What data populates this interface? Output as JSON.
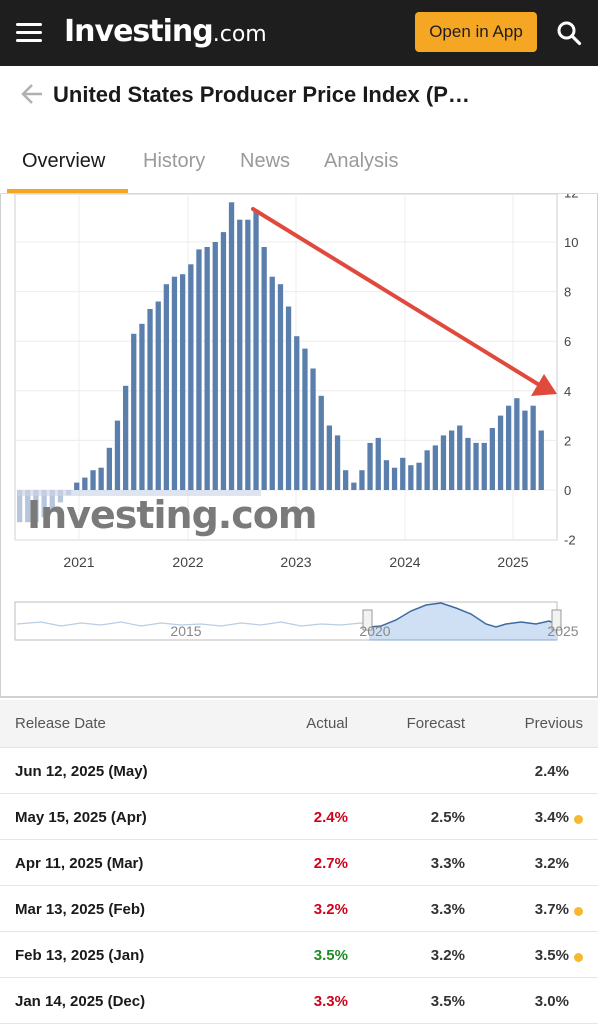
{
  "header": {
    "brand": "Investing",
    "brand_tld": ".com",
    "open_app_label": "Open in App",
    "menu_icon": "hamburger-icon",
    "search_icon": "search-icon"
  },
  "title_bar": {
    "title": "United States Producer Price Index (P…",
    "back_icon": "back-arrow-icon"
  },
  "tabs": [
    {
      "label": "Overview",
      "active": true
    },
    {
      "label": "History",
      "active": false
    },
    {
      "label": "News",
      "active": false
    },
    {
      "label": "Analysis",
      "active": false
    }
  ],
  "colors": {
    "accent": "#f5a623",
    "bar": "#5b7fad",
    "negative_bar": "#b8c6dc",
    "arrow": "#e04a3c",
    "red": "#d0021b",
    "green": "#1f8b24"
  },
  "chart_data": {
    "type": "bar",
    "title": "",
    "xlabel": "",
    "ylabel": "",
    "ylim": [
      -2,
      12
    ],
    "y_ticks": [
      "12",
      "10",
      "8",
      "6",
      "4",
      "2",
      "0",
      "-2"
    ],
    "x_ticks": [
      "2021",
      "2022",
      "2023",
      "2024",
      "2025"
    ],
    "watermark": "Investing.com",
    "annotation": "downward trend arrow from mid-2022 peak toward 2025",
    "series": [
      {
        "values": [
          -1.3,
          -1.3,
          -1.3,
          -1.1,
          -0.8,
          -0.5,
          -0.2,
          0.3,
          0.5,
          0.8,
          0.9,
          1.7,
          2.8,
          4.2,
          6.3,
          6.7,
          7.3,
          7.6,
          8.3,
          8.6,
          8.7,
          9.1,
          9.7,
          9.8,
          10.0,
          10.4,
          11.6,
          10.9,
          10.9,
          11.3,
          9.8,
          8.6,
          8.3,
          7.4,
          6.2,
          5.7,
          4.9,
          3.8,
          2.6,
          2.2,
          0.8,
          0.3,
          0.8,
          1.9,
          2.1,
          1.2,
          0.9,
          1.3,
          1.0,
          1.1,
          1.6,
          1.8,
          2.2,
          2.4,
          2.6,
          2.1,
          1.9,
          1.9,
          2.5,
          3.0,
          3.4,
          3.7,
          3.2,
          3.4,
          2.4
        ],
        "negative_values_note": "earliest bars shown below zero in light shade"
      }
    ],
    "navigator": {
      "labels": [
        "2015",
        "2020",
        "2025"
      ],
      "selected_range": "2020–2025"
    }
  },
  "table": {
    "headers": {
      "release_date": "Release Date",
      "actual": "Actual",
      "forecast": "Forecast",
      "previous": "Previous"
    },
    "rows": [
      {
        "date": "Jun 12, 2025 (May)",
        "actual": "",
        "actual_color": "",
        "forecast": "",
        "previous": "2.4%",
        "revised": false
      },
      {
        "date": "May 15, 2025 (Apr)",
        "actual": "2.4%",
        "actual_color": "red",
        "forecast": "2.5%",
        "previous": "3.4%",
        "revised": true
      },
      {
        "date": "Apr 11, 2025 (Mar)",
        "actual": "2.7%",
        "actual_color": "red",
        "forecast": "3.3%",
        "previous": "3.2%",
        "revised": false
      },
      {
        "date": "Mar 13, 2025 (Feb)",
        "actual": "3.2%",
        "actual_color": "red",
        "forecast": "3.3%",
        "previous": "3.7%",
        "revised": true
      },
      {
        "date": "Feb 13, 2025 (Jan)",
        "actual": "3.5%",
        "actual_color": "green",
        "forecast": "3.2%",
        "previous": "3.5%",
        "revised": true
      },
      {
        "date": "Jan 14, 2025 (Dec)",
        "actual": "3.3%",
        "actual_color": "red",
        "forecast": "3.5%",
        "previous": "3.0%",
        "revised": false
      }
    ]
  }
}
